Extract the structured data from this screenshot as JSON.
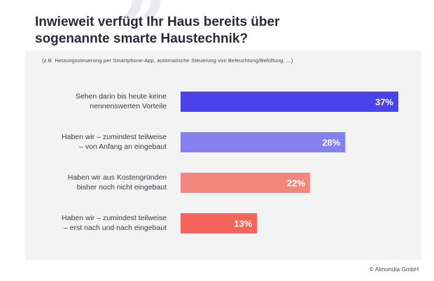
{
  "header": {
    "title_lines": [
      "Inwieweit verfügt Ihr Haus bereits über",
      "sogenannte smarte Haustechnik?"
    ],
    "subtitle": "(z.B. Heizungssteuerung  per Smartphone-App,  automatische Steuerung von Beleuchtung/Belüftung,  ...)",
    "quote_glyph": "”"
  },
  "footer": {
    "copyright": "© Almondia  GmbH"
  },
  "chart_data": {
    "type": "bar",
    "orientation": "horizontal",
    "categories": [
      [
        "Sehen darin bis heute keine",
        "nennenswerten Vorteile"
      ],
      [
        "Haben wir – zumindest teilweise",
        "– von Anfang an eingebaut"
      ],
      [
        "Haben wir aus Kostengründen",
        "bisher noch nicht eingebaut"
      ],
      [
        "Haben wir – zumindest teilweise",
        "– erst nach und nach eingebaut"
      ]
    ],
    "values": [
      37,
      28,
      22,
      13
    ],
    "value_labels": [
      "37%",
      "28%",
      "22%",
      "13%"
    ],
    "colors": [
      "#4a43ea",
      "#857ff0",
      "#f5857f",
      "#f5655c"
    ],
    "label_color": "#ffffff",
    "grid": false,
    "legend": "none"
  }
}
